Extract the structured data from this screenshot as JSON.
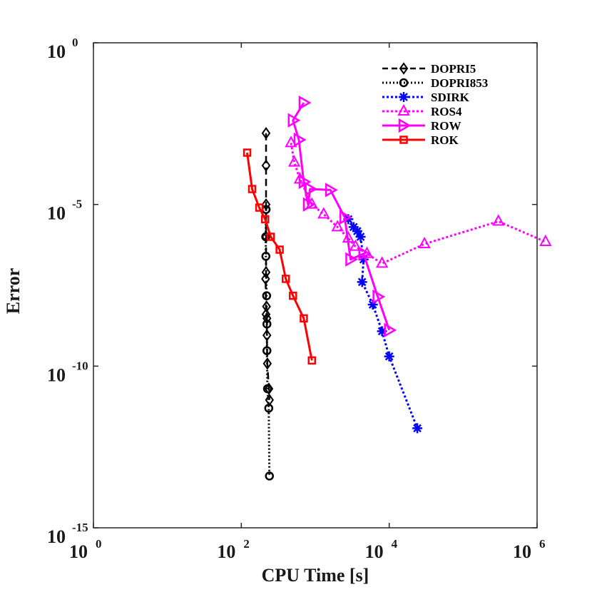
{
  "chart_data": {
    "type": "line",
    "xlabel": "CPU Time [s]",
    "ylabel": "Error",
    "xscale": "log",
    "yscale": "log",
    "xlim": [
      1,
      1000000
    ],
    "ylim": [
      1e-15,
      1
    ],
    "xticks": [
      {
        "value": 1,
        "base": "10",
        "exp": "0"
      },
      {
        "value": 100,
        "base": "10",
        "exp": "2"
      },
      {
        "value": 10000,
        "base": "10",
        "exp": "4"
      },
      {
        "value": 1000000,
        "base": "10",
        "exp": "6"
      }
    ],
    "yticks": [
      {
        "value": 1,
        "base": "10",
        "exp": "0"
      },
      {
        "value": 1e-05,
        "base": "10",
        "exp": "-5"
      },
      {
        "value": 1e-10,
        "base": "10",
        "exp": "-10"
      },
      {
        "value": 1e-15,
        "base": "10",
        "exp": "-15"
      }
    ],
    "legend_position": "top-right",
    "series": [
      {
        "name": "DOPRI5",
        "color": "#000000",
        "dash": "10,6",
        "width": 2.5,
        "marker": "diamond",
        "points": [
          [
            216,
            0.0016
          ],
          [
            216,
            0.00016
          ],
          [
            216,
            1e-05
          ],
          [
            216,
            1e-06
          ],
          [
            216,
            8e-08
          ],
          [
            213,
            5e-08
          ],
          [
            216,
            4e-09
          ],
          [
            222,
            3e-09
          ],
          [
            222,
            9e-10
          ],
          [
            219,
            7e-09
          ],
          [
            225,
            1.2e-10
          ],
          [
            236,
            2e-11
          ],
          [
            240,
            9e-12
          ]
        ]
      },
      {
        "name": "DOPRI853",
        "color": "#000000",
        "dash": "2,3",
        "width": 3,
        "marker": "circle",
        "points": [
          [
            216,
            7e-06
          ],
          [
            214,
            1e-06
          ],
          [
            215,
            2.5e-07
          ],
          [
            220,
            1.5e-08
          ],
          [
            222,
            2e-09
          ],
          [
            222,
            3e-10
          ],
          [
            226,
            2e-11
          ],
          [
            235,
            5e-12
          ],
          [
            240,
            4e-14
          ]
        ]
      },
      {
        "name": "SDIRK",
        "color": "#0000ff",
        "dash": "3,3",
        "width": 3,
        "marker": "asterisk",
        "points": [
          [
            2800,
            3.5e-06
          ],
          [
            3300,
            2e-06
          ],
          [
            3700,
            1.5e-06
          ],
          [
            4100,
            1e-06
          ],
          [
            4500,
            2e-07
          ],
          [
            4300,
            4e-08
          ],
          [
            6000,
            8e-09
          ],
          [
            8000,
            1.2e-09
          ],
          [
            10000,
            2e-10
          ],
          [
            24000,
            1.2e-12
          ]
        ]
      },
      {
        "name": "ROS4",
        "color": "#ff00ff",
        "dash": "3,3",
        "width": 3,
        "marker": "triangle-up",
        "points": [
          [
            470,
            0.0008
          ],
          [
            520,
            0.0002
          ],
          [
            620,
            6e-05
          ],
          [
            900,
            1e-05
          ],
          [
            1300,
            5e-06
          ],
          [
            2000,
            2e-06
          ],
          [
            2800,
            9e-07
          ],
          [
            3500,
            5e-07
          ],
          [
            5000,
            3e-07
          ],
          [
            8000,
            1.5e-07
          ],
          [
            30000,
            6e-07
          ],
          [
            300000,
            3e-06
          ],
          [
            1300000,
            7e-07
          ]
        ]
      },
      {
        "name": "ROW",
        "color": "#ff00ff",
        "dash": "",
        "width": 3,
        "marker": "triangle-right",
        "points": [
          [
            700,
            0.014
          ],
          [
            500,
            0.004
          ],
          [
            600,
            0.001
          ],
          [
            700,
            5e-05
          ],
          [
            800,
            1e-05
          ],
          [
            850,
            3e-05
          ],
          [
            1600,
            2.8e-05
          ],
          [
            2500,
            4e-06
          ],
          [
            3000,
            2e-07
          ],
          [
            4500,
            3e-07
          ],
          [
            7000,
            1.4e-08
          ],
          [
            10000,
            1.3e-09
          ]
        ]
      },
      {
        "name": "ROK",
        "color": "#ff0000",
        "dash": "",
        "width": 3,
        "marker": "square",
        "points": [
          [
            120,
            0.0004
          ],
          [
            140,
            3e-05
          ],
          [
            175,
            8e-06
          ],
          [
            210,
            3.5e-06
          ],
          [
            250,
            1e-06
          ],
          [
            330,
            4e-07
          ],
          [
            400,
            5e-08
          ],
          [
            500,
            1.5e-08
          ],
          [
            700,
            3e-09
          ],
          [
            900,
            1.5e-10
          ]
        ]
      }
    ]
  }
}
